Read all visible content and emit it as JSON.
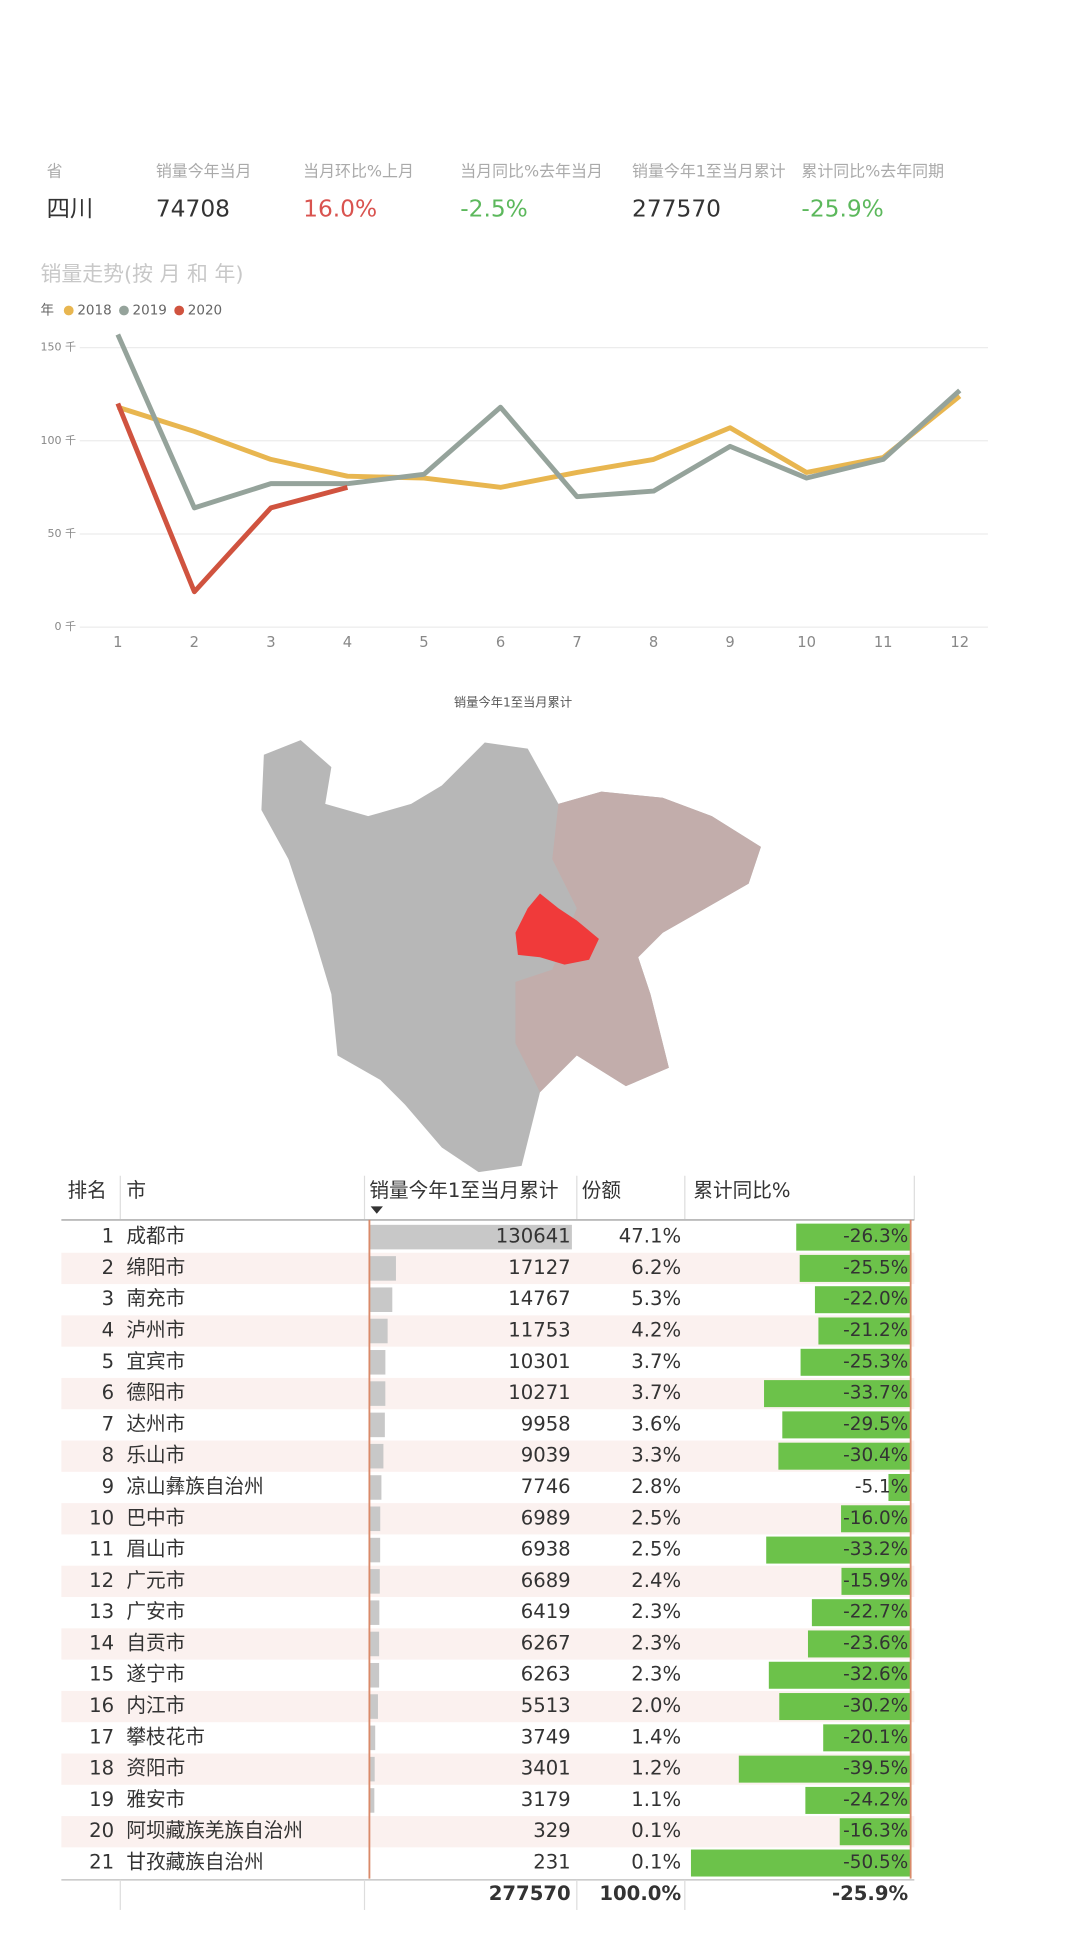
{
  "kpis": [
    {
      "label": "省",
      "value": "四川",
      "color": "#333333"
    },
    {
      "label": "销量今年当月",
      "value": "74708",
      "color": "#333333"
    },
    {
      "label": "当月环比%上月",
      "value": "16.0%",
      "color": "#d9534f"
    },
    {
      "label": "当月同比%去年当月",
      "value": "-2.5%",
      "color": "#5cb85c"
    },
    {
      "label": "销量今年1至当月累计",
      "value": "277570",
      "color": "#333333"
    },
    {
      "label": "累计同比%去年同期",
      "value": "-25.9%",
      "color": "#5cb85c"
    }
  ],
  "chart_data": {
    "type": "line",
    "title": "销量走势(按 月 和 年)",
    "legend_title": "年",
    "categories": [
      "1",
      "2",
      "3",
      "4",
      "5",
      "6",
      "7",
      "8",
      "9",
      "10",
      "11",
      "12"
    ],
    "series": [
      {
        "name": "2018",
        "color": "#e8b650",
        "values": [
          118,
          105,
          90,
          81,
          80,
          75,
          83,
          90,
          107,
          83,
          91,
          124
        ]
      },
      {
        "name": "2019",
        "color": "#95a39b",
        "values": [
          157,
          64,
          77,
          77,
          82,
          118,
          70,
          73,
          97,
          80,
          90,
          127
        ]
      },
      {
        "name": "2020",
        "color": "#d0533f",
        "values": [
          120,
          19,
          64,
          75,
          null,
          null,
          null,
          null,
          null,
          null,
          null,
          null
        ]
      }
    ],
    "ylim": [
      0,
      160
    ],
    "yticks": [
      {
        "value": 0,
        "label": "0 千"
      },
      {
        "value": 50,
        "label": "50 千"
      },
      {
        "value": 100,
        "label": "100 千"
      },
      {
        "value": 150,
        "label": "150 千"
      }
    ],
    "grid": true
  },
  "map": {
    "title": "销量今年1至当月累计"
  },
  "table": {
    "columns": [
      "排名",
      "市",
      "销量今年1至当月累计",
      "份额",
      "累计同比%"
    ],
    "rows": [
      {
        "rank": 1,
        "city": "成都市",
        "sales": 130641,
        "share": "47.1%",
        "yoy": -26.3,
        "yoy_label": "-26.3%"
      },
      {
        "rank": 2,
        "city": "绵阳市",
        "sales": 17127,
        "share": "6.2%",
        "yoy": -25.5,
        "yoy_label": "-25.5%"
      },
      {
        "rank": 3,
        "city": "南充市",
        "sales": 14767,
        "share": "5.3%",
        "yoy": -22.0,
        "yoy_label": "-22.0%"
      },
      {
        "rank": 4,
        "city": "泸州市",
        "sales": 11753,
        "share": "4.2%",
        "yoy": -21.2,
        "yoy_label": "-21.2%"
      },
      {
        "rank": 5,
        "city": "宜宾市",
        "sales": 10301,
        "share": "3.7%",
        "yoy": -25.3,
        "yoy_label": "-25.3%"
      },
      {
        "rank": 6,
        "city": "德阳市",
        "sales": 10271,
        "share": "3.7%",
        "yoy": -33.7,
        "yoy_label": "-33.7%"
      },
      {
        "rank": 7,
        "city": "达州市",
        "sales": 9958,
        "share": "3.6%",
        "yoy": -29.5,
        "yoy_label": "-29.5%"
      },
      {
        "rank": 8,
        "city": "乐山市",
        "sales": 9039,
        "share": "3.3%",
        "yoy": -30.4,
        "yoy_label": "-30.4%"
      },
      {
        "rank": 9,
        "city": "凉山彝族自治州",
        "sales": 7746,
        "share": "2.8%",
        "yoy": -5.1,
        "yoy_label": "-5.1%"
      },
      {
        "rank": 10,
        "city": "巴中市",
        "sales": 6989,
        "share": "2.5%",
        "yoy": -16.0,
        "yoy_label": "-16.0%"
      },
      {
        "rank": 11,
        "city": "眉山市",
        "sales": 6938,
        "share": "2.5%",
        "yoy": -33.2,
        "yoy_label": "-33.2%"
      },
      {
        "rank": 12,
        "city": "广元市",
        "sales": 6689,
        "share": "2.4%",
        "yoy": -15.9,
        "yoy_label": "-15.9%"
      },
      {
        "rank": 13,
        "city": "广安市",
        "sales": 6419,
        "share": "2.3%",
        "yoy": -22.7,
        "yoy_label": "-22.7%"
      },
      {
        "rank": 14,
        "city": "自贡市",
        "sales": 6267,
        "share": "2.3%",
        "yoy": -23.6,
        "yoy_label": "-23.6%"
      },
      {
        "rank": 15,
        "city": "遂宁市",
        "sales": 6263,
        "share": "2.3%",
        "yoy": -32.6,
        "yoy_label": "-32.6%"
      },
      {
        "rank": 16,
        "city": "内江市",
        "sales": 5513,
        "share": "2.0%",
        "yoy": -30.2,
        "yoy_label": "-30.2%"
      },
      {
        "rank": 17,
        "city": "攀枝花市",
        "sales": 3749,
        "share": "1.4%",
        "yoy": -20.1,
        "yoy_label": "-20.1%"
      },
      {
        "rank": 18,
        "city": "资阳市",
        "sales": 3401,
        "share": "1.2%",
        "yoy": -39.5,
        "yoy_label": "-39.5%"
      },
      {
        "rank": 19,
        "city": "雅安市",
        "sales": 3179,
        "share": "1.1%",
        "yoy": -24.2,
        "yoy_label": "-24.2%"
      },
      {
        "rank": 20,
        "city": "阿坝藏族羌族自治州",
        "sales": 329,
        "share": "0.1%",
        "yoy": -16.3,
        "yoy_label": "-16.3%"
      },
      {
        "rank": 21,
        "city": "甘孜藏族自治州",
        "sales": 231,
        "share": "0.1%",
        "yoy": -50.5,
        "yoy_label": "-50.5%"
      }
    ],
    "total": {
      "sales": 277570,
      "share": "100.0%",
      "yoy": "-25.9%"
    }
  }
}
